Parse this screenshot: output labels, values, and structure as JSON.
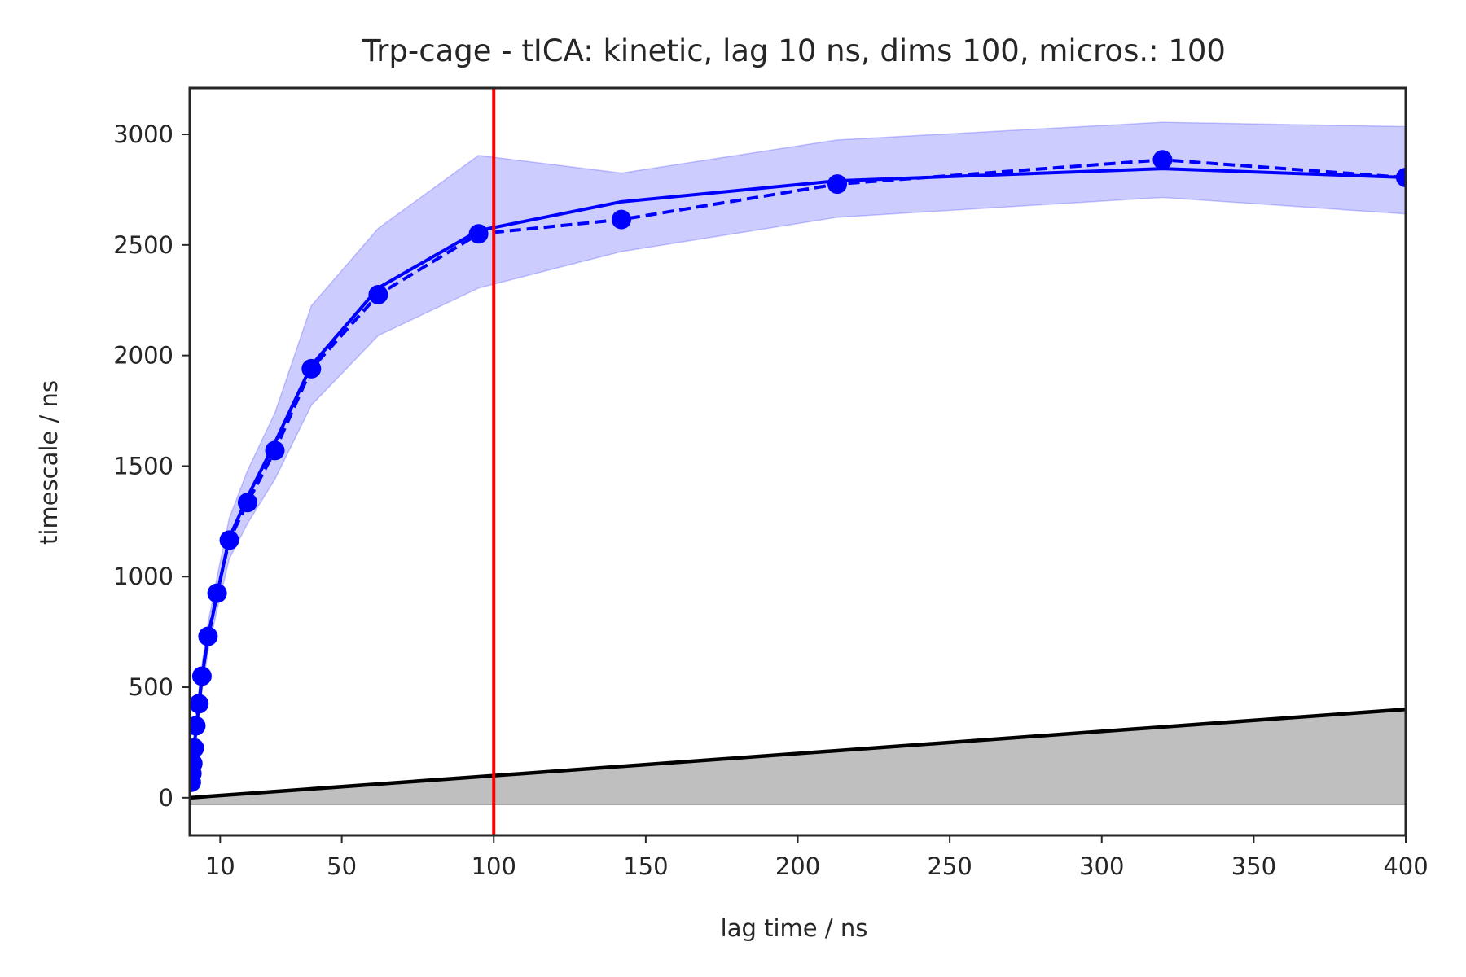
{
  "chart_data": {
    "type": "line",
    "title": "Trp-cage - tICA: kinetic, lag 10 ns, dims 100, micros.: 100",
    "xlabel": "lag time / ns",
    "ylabel": "timescale / ns",
    "xlim": [
      0,
      400
    ],
    "ylim": [
      -170,
      3210
    ],
    "xticks": [
      10,
      50,
      100,
      150,
      200,
      250,
      300,
      350,
      400
    ],
    "yticks": [
      0,
      500,
      1000,
      1500,
      2000,
      2500,
      3000
    ],
    "grid": false,
    "legend": "none",
    "colors": {
      "series": "#0000ff",
      "band": "#0000ff",
      "selected_lag": "#ff0000",
      "lag_line": "#000000",
      "lag_fill": "#bfbfbf"
    },
    "selected_lag": 100,
    "lag_line": {
      "x": [
        0,
        400
      ],
      "y": [
        0,
        400
      ],
      "fill_floor": -30
    },
    "series": [
      {
        "style": "solid",
        "x": [
          0.5,
          0.7,
          1,
          1.5,
          2,
          3,
          4,
          6,
          9,
          13,
          19,
          28,
          40,
          62,
          95,
          142,
          213,
          320,
          400
        ],
        "y": [
          70,
          105,
          145,
          220,
          310,
          410,
          545,
          720,
          920,
          1175,
          1360,
          1605,
          1955,
          2305,
          2565,
          2695,
          2790,
          2845,
          2805
        ]
      },
      {
        "style": "dashed",
        "markers": true,
        "x": [
          0.5,
          0.7,
          1,
          1.5,
          2,
          3,
          4,
          6,
          9,
          13,
          19,
          28,
          40,
          62,
          95,
          142,
          213,
          320,
          400
        ],
        "y": [
          70,
          110,
          155,
          225,
          325,
          425,
          550,
          730,
          925,
          1165,
          1335,
          1570,
          1940,
          2275,
          2550,
          2615,
          2775,
          2885,
          2805
        ]
      }
    ],
    "confidence_band": {
      "x": [
        0.5,
        1,
        2,
        4,
        6,
        9,
        13,
        19,
        28,
        40,
        62,
        95,
        142,
        213,
        320,
        400
      ],
      "upper": [
        100,
        190,
        370,
        600,
        790,
        1000,
        1265,
        1480,
        1740,
        2225,
        2575,
        2905,
        2825,
        2975,
        3055,
        3035
      ],
      "lower": [
        40,
        110,
        260,
        480,
        660,
        850,
        1080,
        1240,
        1440,
        1775,
        2090,
        2305,
        2470,
        2625,
        2715,
        2640
      ]
    }
  }
}
